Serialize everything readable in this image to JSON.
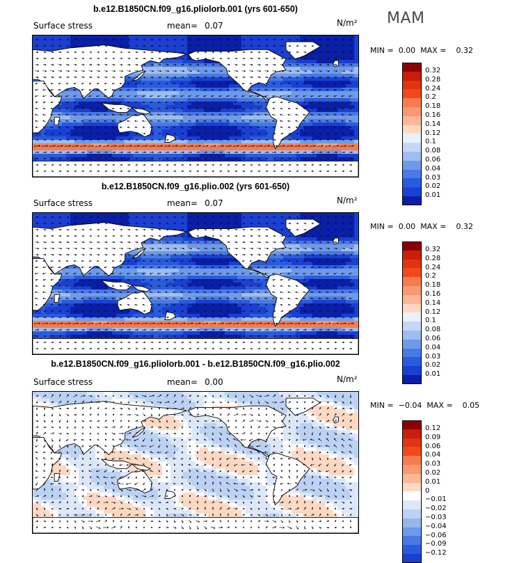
{
  "season": "MAM",
  "palettes": {
    "full": [
      "#8b0000",
      "#c81e0c",
      "#e0330f",
      "#f04a1a",
      "#f67b50",
      "#f8996f",
      "#fbb899",
      "#fdd9c4",
      "#eaf1fb",
      "#c5d7f5",
      "#9fbdf0",
      "#6f9ae8",
      "#4979e4",
      "#2a5bde",
      "#1a3fd2",
      "#0a1fa8",
      "#000080"
    ],
    "diff": [
      "#8b0000",
      "#c81e0c",
      "#e0330f",
      "#f04a1a",
      "#f67b50",
      "#f8996f",
      "#fbb899",
      "#fdd9c4",
      "#ffffff",
      "#dce8fa",
      "#bcd2f5",
      "#96b6f0",
      "#6f9ae8",
      "#4979e4",
      "#2a5bde",
      "#1a3fd2",
      "#000080"
    ]
  },
  "panels": [
    {
      "title": "b.e12.B1850CN.f09_g16.pliolorb.001 (yrs 601-650)",
      "variable": "Surface stress",
      "mean_label": "mean=",
      "mean_value": "0.07",
      "units": "N/m²",
      "min_label": "MIN =",
      "min_value": "0.00",
      "max_label": "MAX =",
      "max_value": "0.32",
      "kind": "full",
      "colorbar_labels": [
        "0.32",
        "0.28",
        "0.24",
        "0.2",
        "0.18",
        "0.16",
        "0.14",
        "0.12",
        "0.1",
        "0.08",
        "0.06",
        "0.04",
        "0.03",
        "0.02",
        "0.01"
      ]
    },
    {
      "title": "b.e12.B1850CN.f09_g16.plio.002 (yrs 601-650)",
      "variable": "Surface stress",
      "mean_label": "mean=",
      "mean_value": "0.07",
      "units": "N/m²",
      "min_label": "MIN =",
      "min_value": "0.00",
      "max_label": "MAX =",
      "max_value": "0.32",
      "kind": "full",
      "colorbar_labels": [
        "0.32",
        "0.28",
        "0.24",
        "0.2",
        "0.18",
        "0.16",
        "0.14",
        "0.12",
        "0.1",
        "0.08",
        "0.06",
        "0.04",
        "0.03",
        "0.02",
        "0.01"
      ]
    },
    {
      "title": "b.e12.B1850CN.f09_g16.pliolorb.001 - b.e12.B1850CN.f09_g16.plio.002",
      "variable": "Surface stress",
      "mean_label": "mean=",
      "mean_value": "0.00",
      "units": "N/m²",
      "min_label": "MIN =",
      "min_value": "−0.04",
      "max_label": "MAX =",
      "max_value": "0.05",
      "kind": "diff",
      "colorbar_labels": [
        "0.12",
        "0.09",
        "0.06",
        "0.04",
        "0.03",
        "0.02",
        "0.01",
        "0",
        "−0.01",
        "−0.02",
        "−0.03",
        "−0.04",
        "−0.06",
        "−0.09",
        "−0.12"
      ]
    }
  ]
}
